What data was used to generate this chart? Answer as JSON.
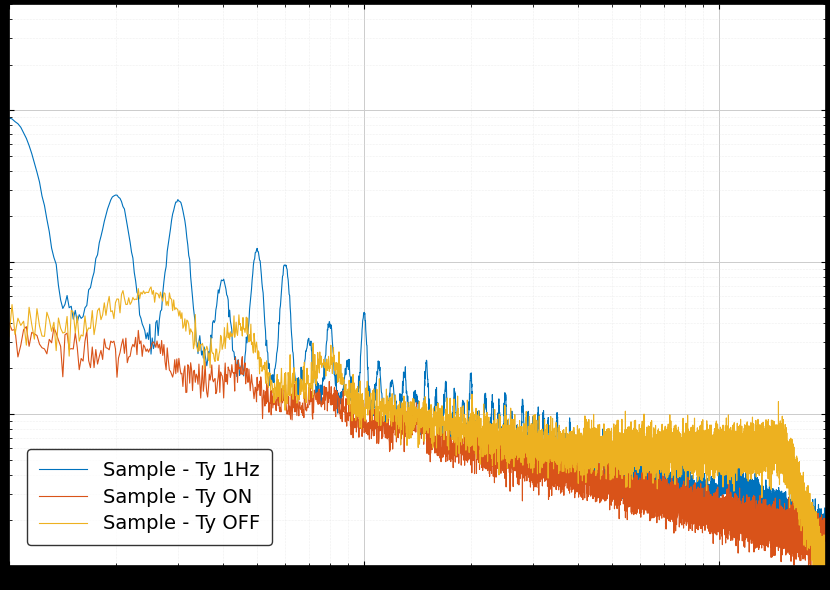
{
  "title": "",
  "xlabel": "",
  "ylabel": "",
  "line1_color": "#0072BD",
  "line2_color": "#D95319",
  "line3_color": "#EDB120",
  "line1_label": "Sample - Ty 1Hz",
  "line2_label": "Sample - Ty ON",
  "line3_label": "Sample - Ty OFF",
  "line_width": 0.8,
  "background_color": "#FFFFFF",
  "plot_bg_color": "#F0F0F0",
  "grid_color": "#CCCCCC",
  "font_size": 14,
  "fig_bg_color": "#000000"
}
